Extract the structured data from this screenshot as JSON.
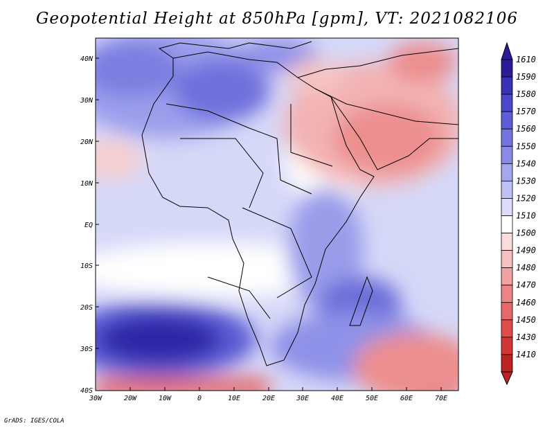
{
  "title": "Geopotential Height at 850hPa [gpm], VT: 2021082106",
  "credit": "GrADS: IGES/COLA",
  "lat_labels": [
    "40N",
    "30N",
    "20N",
    "10N",
    "EQ",
    "10S",
    "20S",
    "30S",
    "40S"
  ],
  "lon_labels": [
    "30W",
    "20W",
    "10W",
    "0",
    "10E",
    "20E",
    "30E",
    "40E",
    "50E",
    "60E",
    "70E"
  ],
  "colorbar": {
    "levels": [
      "1610",
      "1590",
      "1580",
      "1570",
      "1560",
      "1550",
      "1540",
      "1530",
      "1520",
      "1510",
      "1500",
      "1490",
      "1480",
      "1470",
      "1460",
      "1450",
      "1430",
      "1410"
    ],
    "colors": [
      "#2a1b96",
      "#3a32b4",
      "#4a48c8",
      "#5d5dd6",
      "#7373de",
      "#8a8be6",
      "#a4a6ee",
      "#bfc1f4",
      "#dadcf9",
      "#ffffff",
      "#fbdcdc",
      "#f6c0c0",
      "#f1a2a2",
      "#ec8585",
      "#e66868",
      "#de4c4c",
      "#d23636",
      "#bf2222"
    ]
  },
  "colors": {
    "land_border": "#000000",
    "neutral": "#ffffff"
  }
}
